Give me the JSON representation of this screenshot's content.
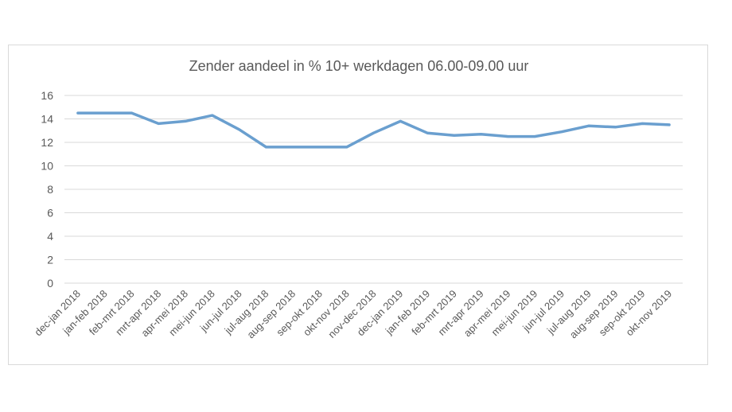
{
  "chart_data": {
    "type": "line",
    "title": "Zender aandeel in % 10+ werkdagen 06.00-09.00 uur",
    "xlabel": "",
    "ylabel": "",
    "ylim": [
      0,
      16
    ],
    "yticks": [
      0,
      2,
      4,
      6,
      8,
      10,
      12,
      14,
      16
    ],
    "grid": true,
    "legend": "none",
    "categories": [
      "dec-jan 2018",
      "jan-feb 2018",
      "feb-mrt 2018",
      "mrt-apr 2018",
      "apr-mei 2018",
      "mei-jun 2018",
      "jun-jul 2018",
      "jul-aug 2018",
      "aug-sep 2018",
      "sep-okt 2018",
      "okt-nov 2018",
      "nov-dec 2018",
      "dec-jan 2019",
      "jan-feb 2019",
      "feb-mrt 2019",
      "mrt-apr 2019",
      "apr-mei 2019",
      "mei-jun 2019",
      "jun-jul 2019",
      "jul-aug 2019",
      "aug-sep 2019",
      "sep-okt 2019",
      "okt-nov 2019"
    ],
    "series": [
      {
        "name": "Zender aandeel",
        "color": "#6a9fcf",
        "values": [
          14.5,
          14.5,
          14.5,
          13.6,
          13.8,
          14.3,
          13.1,
          11.6,
          11.6,
          11.6,
          11.6,
          12.8,
          13.8,
          12.8,
          12.6,
          12.7,
          12.5,
          12.5,
          12.9,
          13.4,
          13.3,
          13.6,
          13.5
        ]
      }
    ],
    "gridline_color": "#d9d9d9",
    "text_color": "#595959"
  }
}
